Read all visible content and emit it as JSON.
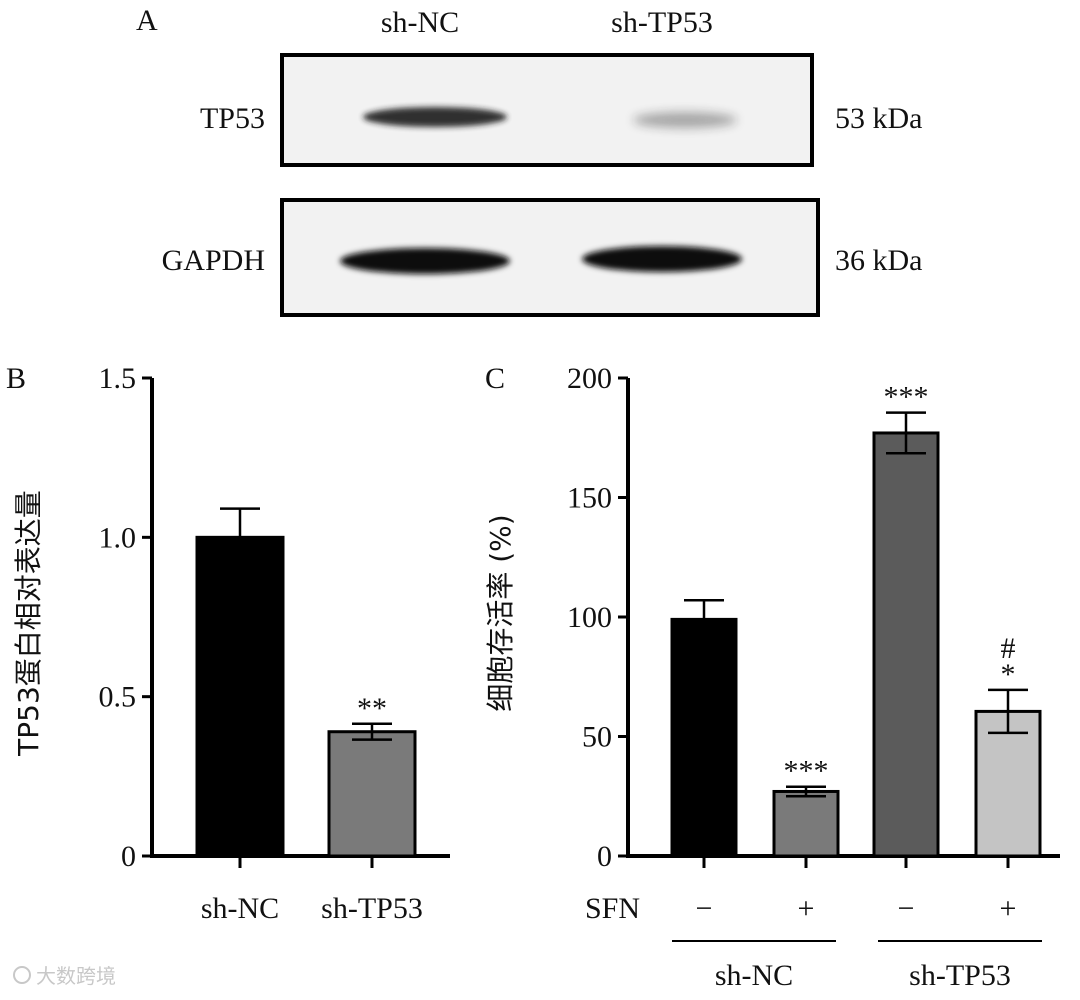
{
  "panel_a": {
    "letter": "A",
    "lanes": [
      "sh-NC",
      "sh-TP53"
    ],
    "blots": [
      {
        "protein": "TP53",
        "size": "53 kDa",
        "band_intensity": [
          0.9,
          0.35
        ]
      },
      {
        "protein": "GAPDH",
        "size": "36 kDa",
        "band_intensity": [
          1.0,
          1.0
        ]
      }
    ]
  },
  "watermark": "大数跨境",
  "chart_data": [
    {
      "panel": "B",
      "type": "bar",
      "ylabel": "TP53蛋白相对表达量",
      "ylim": [
        0,
        1.5
      ],
      "yticks": [
        "0",
        "0.5",
        "1.0",
        "1.5"
      ],
      "ytick_values": [
        0,
        0.5,
        1.0,
        1.5
      ],
      "categories": [
        "sh-NC",
        "sh-TP53"
      ],
      "values": [
        1.0,
        0.39
      ],
      "errors": [
        0.09,
        0.025
      ],
      "colors": [
        "#000000",
        "#7a7a7a"
      ],
      "annotations": [
        "",
        "**"
      ]
    },
    {
      "panel": "C",
      "type": "bar",
      "ylabel": "细胞存活率 (%)",
      "ylim": [
        0,
        200
      ],
      "yticks": [
        "0",
        "50",
        "100",
        "150",
        "200"
      ],
      "ytick_values": [
        0,
        50,
        100,
        150,
        200
      ],
      "sfn_label": "SFN",
      "sfn_values": [
        "−",
        "+",
        "−",
        "+"
      ],
      "groups": [
        "sh-NC",
        "sh-TP53"
      ],
      "values": [
        99,
        27,
        177,
        60.5
      ],
      "errors": [
        8,
        2,
        8.5,
        9
      ],
      "colors": [
        "#000000",
        "#7a7a7a",
        "#5b5b5b",
        "#c4c4c4"
      ],
      "annotations": [
        [
          "",
          ""
        ],
        [
          "***",
          ""
        ],
        [
          "***",
          ""
        ],
        [
          "*",
          "#"
        ]
      ]
    }
  ]
}
